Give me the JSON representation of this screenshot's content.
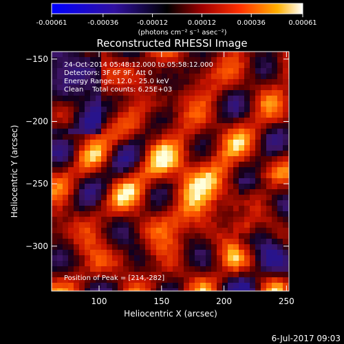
{
  "chart_data": {
    "type": "heatmap",
    "title": "Reconstructed RHESSI Image",
    "xlabel": "Heliocentric X (arcsec)",
    "ylabel": "Heliocentric Y (arcsec)",
    "xlim": [
      62,
      252
    ],
    "ylim": [
      -336,
      -144
    ],
    "xticks": [
      100,
      150,
      200,
      250
    ],
    "yticks": [
      -150,
      -200,
      -250,
      -300
    ],
    "xtick_labels": [
      "100",
      "150",
      "200",
      "250"
    ],
    "ytick_labels": [
      "−150",
      "−200",
      "−250",
      "−300"
    ],
    "colorbar": {
      "ticks": [
        -0.00061,
        -0.00036,
        -0.00012,
        0.00012,
        0.00036,
        0.00061
      ],
      "tick_labels": [
        "-0.00061",
        "-0.00036",
        "-0.00012",
        "0.00012",
        "0.00036",
        "0.00061"
      ],
      "units": "(photons cm⁻² s⁻¹ asec⁻²)",
      "range": [
        -0.00061,
        0.00061
      ],
      "colormap": [
        "#0000ff",
        "#4010a0",
        "#000000",
        "#a00000",
        "#ff3000",
        "#ffb000",
        "#ffffff"
      ]
    },
    "annotations": [
      "24-Oct-2014 05:48:12.000 to 05:58:12.000",
      "Detectors: 3F 6F 9F, Att 0",
      "Energy Range: 12.0 - 25.0 keV",
      "Clean    Total counts: 6.25E+03"
    ],
    "peak_label": "Position of Peak = [214,-282]",
    "peak": [
      214,
      -282
    ]
  },
  "timestamp": "6-Jul-2017 09:03"
}
